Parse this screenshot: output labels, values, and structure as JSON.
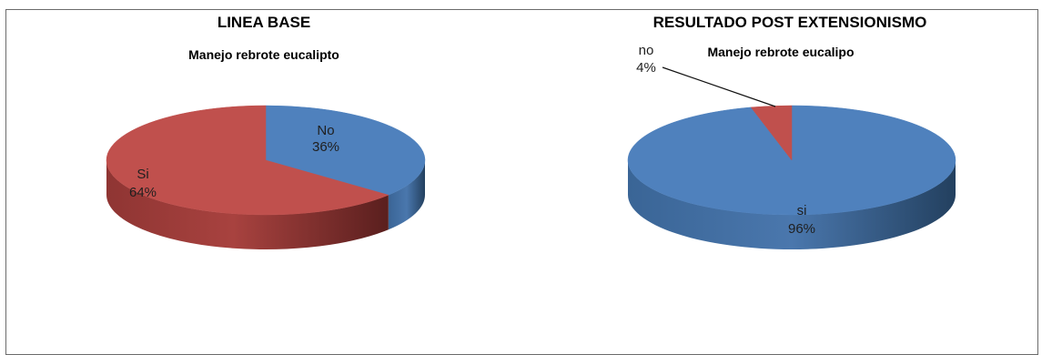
{
  "headings": {
    "left": "LINEA BASE",
    "right": "RESULTADO POST EXTENSIONISMO"
  },
  "chart_data": [
    {
      "type": "pie",
      "title": "Manejo  rebrote eucalipto",
      "slices": [
        {
          "name": "No",
          "value": 36,
          "label": "36%"
        },
        {
          "name": "Si",
          "value": 64,
          "label": "64%"
        }
      ]
    },
    {
      "type": "pie",
      "title": "Manejo  rebrote eucalipo",
      "slices": [
        {
          "name": "no",
          "value": 4,
          "label": "4%"
        },
        {
          "name": "si",
          "value": 96,
          "label": "96%"
        }
      ]
    }
  ],
  "colors": {
    "blue": "#4f81bd",
    "blue_side": "#2d4f7c",
    "red": "#c0504d",
    "red_side": "#6e2826",
    "label_text": "#1f1f1f"
  }
}
